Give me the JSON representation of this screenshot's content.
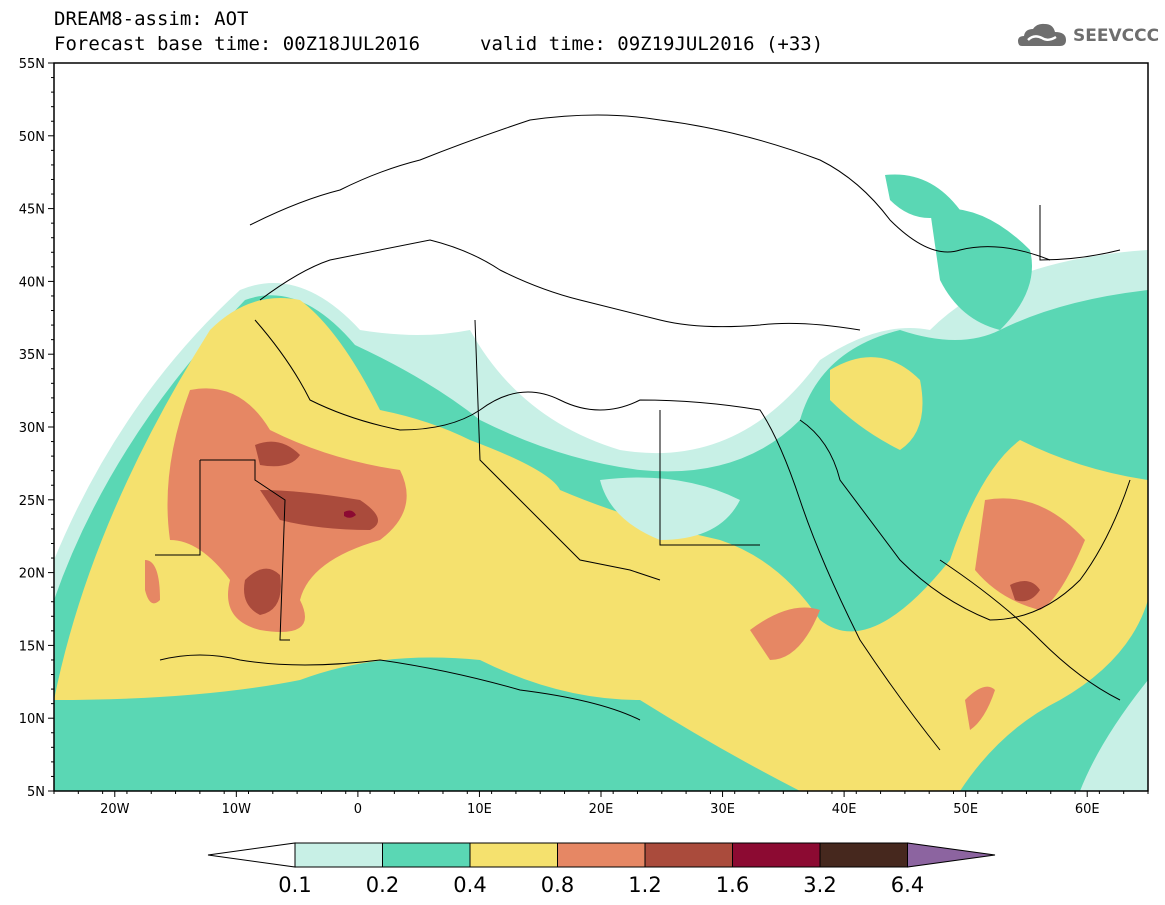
{
  "header": {
    "title": "DREAM8-assim: AOT",
    "forecast_base": "Forecast base time: 00Z18JUL2016",
    "valid_time": "valid time: 09Z19JUL2016 (+33)"
  },
  "logo": {
    "text": "SEEVCCC",
    "icon": "cloud-icon"
  },
  "map": {
    "lon_range": [
      -25,
      65
    ],
    "lat_range": [
      5,
      55
    ],
    "lat_ticks": [
      "5N",
      "10N",
      "15N",
      "20N",
      "25N",
      "30N",
      "35N",
      "40N",
      "45N",
      "50N",
      "55N"
    ],
    "lon_ticks": [
      "20W",
      "10W",
      "0",
      "10E",
      "20E",
      "30E",
      "40E",
      "50E",
      "60E"
    ]
  },
  "colorbar": {
    "levels": [
      "0.1",
      "0.2",
      "0.4",
      "0.8",
      "1.2",
      "1.6",
      "3.2",
      "6.4"
    ],
    "colors": [
      "#c8f0e6",
      "#5ad7b4",
      "#f5e16e",
      "#e68764",
      "#aa4b3c",
      "#8c0a32",
      "#46281e",
      "#8c64a0"
    ]
  }
}
